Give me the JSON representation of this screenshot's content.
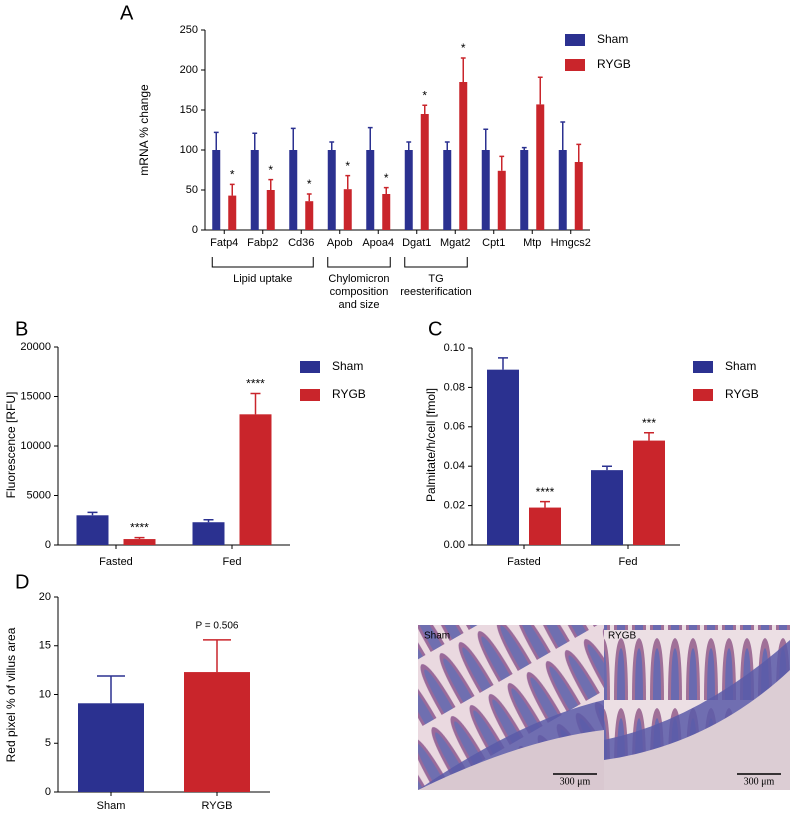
{
  "chart_data": [
    {
      "type": "bar",
      "panel": "A",
      "ylabel": "mRNA % change",
      "categories": [
        "Fatp4",
        "Fabp2",
        "Cd36",
        "Apob",
        "Apoa4",
        "Dgat1",
        "Mgat2",
        "Cpt1",
        "Mtp",
        "Hmgcs2"
      ],
      "series": [
        {
          "name": "Sham",
          "color": "#2b3190",
          "values": [
            100,
            100,
            100,
            100,
            100,
            100,
            100,
            100,
            100,
            100
          ],
          "errors": [
            22,
            21,
            27,
            10,
            28,
            10,
            10,
            26,
            3,
            35
          ],
          "significance": [
            null,
            null,
            null,
            null,
            null,
            null,
            null,
            null,
            null,
            null
          ]
        },
        {
          "name": "RYGB",
          "color": "#c9252b",
          "values": [
            43,
            50,
            36,
            51,
            45,
            145,
            185,
            74,
            157,
            85
          ],
          "errors": [
            14,
            13,
            9,
            17,
            8,
            11,
            30,
            18,
            34,
            22
          ],
          "significance": [
            "*",
            "*",
            "*",
            "*",
            "*",
            "*",
            "*",
            null,
            null,
            null
          ]
        }
      ],
      "groups": [
        {
          "lines": [
            "Lipid uptake"
          ]
        },
        {
          "lines": [
            "Chylomicron",
            "composition",
            "and size"
          ]
        },
        {
          "lines": [
            "TG",
            "reesterification"
          ]
        }
      ],
      "ylim": [
        0,
        250
      ],
      "yticks": [
        0,
        50,
        100,
        150,
        200,
        250
      ],
      "legend": "right"
    },
    {
      "type": "bar",
      "panel": "B",
      "ylabel": "Fluorescence [RFU]",
      "categories": [
        "Fasted",
        "Fed"
      ],
      "series": [
        {
          "name": "Sham",
          "color": "#2b3190",
          "values": [
            3000,
            2300
          ],
          "errors": [
            300,
            250
          ],
          "significance": [
            null,
            null
          ]
        },
        {
          "name": "RYGB",
          "color": "#c9252b",
          "values": [
            600,
            13200
          ],
          "errors": [
            150,
            2100
          ],
          "significance": [
            "****",
            "****"
          ]
        }
      ],
      "ylim": [
        0,
        20000
      ],
      "yticks": [
        0,
        5000,
        10000,
        15000,
        20000
      ],
      "legend": "right"
    },
    {
      "type": "bar",
      "panel": "C",
      "ylabel": "Palmitate/h/cell [fmol]",
      "categories": [
        "Fasted",
        "Fed"
      ],
      "series": [
        {
          "name": "Sham",
          "color": "#2b3190",
          "values": [
            0.089,
            0.038
          ],
          "errors": [
            0.006,
            0.002
          ],
          "significance": [
            null,
            null
          ]
        },
        {
          "name": "RYGB",
          "color": "#c9252b",
          "values": [
            0.019,
            0.053
          ],
          "errors": [
            0.003,
            0.004
          ],
          "significance": [
            "****",
            "***"
          ]
        }
      ],
      "ylim": [
        0,
        0.1
      ],
      "yticks": [
        {
          "value": 0,
          "label": "0.00"
        },
        {
          "value": 0.02,
          "label": "0.02"
        },
        {
          "value": 0.04,
          "label": "0.04"
        },
        {
          "value": 0.06,
          "label": "0.06"
        },
        {
          "value": 0.08,
          "label": "0.08"
        },
        {
          "value": 0.1,
          "label": "0.10"
        }
      ],
      "legend": "right"
    },
    {
      "type": "bar",
      "panel": "D",
      "ylabel": "Red pixel % of villus area",
      "categories": [
        "Sham",
        "RYGB"
      ],
      "series": [
        {
          "colors": [
            "#2b3190",
            "#c9252b"
          ],
          "values": [
            9.1,
            12.3
          ],
          "errors": [
            2.8,
            3.3
          ],
          "significance": [
            null,
            null
          ]
        }
      ],
      "annotation": "P = 0.506",
      "ylim": [
        0,
        20
      ],
      "yticks": [
        0,
        5,
        10,
        15,
        20
      ]
    }
  ],
  "micrographs": {
    "labels": [
      "Sham",
      "RYGB"
    ],
    "scale_bar": "300 μm"
  }
}
